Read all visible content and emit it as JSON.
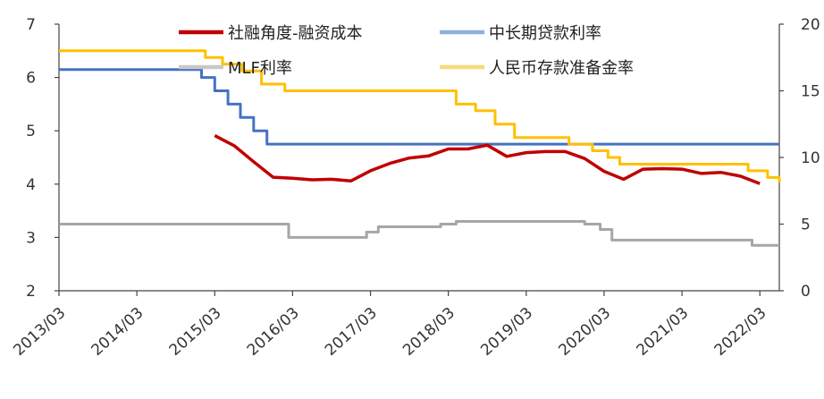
{
  "chart_data": {
    "type": "line",
    "title": "",
    "xlabel": "",
    "ylabel_left": "",
    "ylabel_right": "",
    "x_tick_labels": [
      "2013/03",
      "2014/03",
      "2015/03",
      "2016/03",
      "2017/03",
      "2018/03",
      "2019/03",
      "2020/03",
      "2021/03",
      "2022/03"
    ],
    "ylim_left": [
      2,
      7
    ],
    "yticks_left": [
      "2",
      "3",
      "4",
      "5",
      "6",
      "7"
    ],
    "ylim_right": [
      0,
      20
    ],
    "yticks_right": [
      "0",
      "5",
      "10",
      "15",
      "20"
    ],
    "grid": false,
    "legend": {
      "placement": "top-center",
      "entries": [
        {
          "name": "社融角度-融资成本",
          "color": "#c00000"
        },
        {
          "name": "中长期贷款利率",
          "color": "#8fb0dc"
        },
        {
          "name": "MLF利率",
          "color": "#c8c8c8"
        },
        {
          "name": "人民币存款准备金率",
          "color": "#f5dc78"
        }
      ]
    },
    "series": [
      {
        "name": "社融角度-融资成本",
        "axis": "left",
        "color": "#c00000",
        "x": [
          2015.0,
          2015.25,
          2015.5,
          2015.75,
          2016.0,
          2016.25,
          2016.5,
          2016.75,
          2017.0,
          2017.25,
          2017.5,
          2017.75,
          2018.0,
          2018.25,
          2018.5,
          2018.75,
          2019.0,
          2019.25,
          2019.5,
          2019.75,
          2020.0,
          2020.25,
          2020.5,
          2020.75,
          2021.0,
          2021.25,
          2021.5,
          2021.75,
          2022.0
        ],
        "y": [
          4.91,
          4.72,
          4.42,
          4.13,
          4.11,
          4.08,
          4.09,
          4.06,
          4.25,
          4.39,
          4.49,
          4.53,
          4.66,
          4.66,
          4.73,
          4.52,
          4.59,
          4.61,
          4.61,
          4.48,
          4.24,
          4.09,
          4.28,
          4.29,
          4.28,
          4.2,
          4.22,
          4.15,
          4.01
        ]
      },
      {
        "name": "中长期贷款利率",
        "axis": "left",
        "color": "#4472c4",
        "step": true,
        "x": [
          2013.0,
          2014.5,
          2014.83,
          2015.0,
          2015.17,
          2015.33,
          2015.5,
          2015.67,
          2015.82,
          2016.5,
          2017.5,
          2018.5,
          2019.5,
          2020.5,
          2021.5,
          2022.25
        ],
        "y": [
          6.15,
          6.15,
          6.0,
          5.75,
          5.5,
          5.25,
          5.0,
          4.75,
          4.75,
          4.75,
          4.75,
          4.75,
          4.75,
          4.75,
          4.75,
          4.75
        ]
      },
      {
        "name": "MLF利率",
        "axis": "left",
        "color": "#a6a6a6",
        "step": true,
        "x": [
          2013.0,
          2014.0,
          2015.0,
          2015.95,
          2016.95,
          2017.1,
          2017.9,
          2018.1,
          2019.5,
          2019.75,
          2019.95,
          2020.1,
          2020.75,
          2021.5,
          2021.9,
          2022.25
        ],
        "y": [
          3.25,
          3.25,
          3.25,
          3.0,
          3.1,
          3.2,
          3.25,
          3.3,
          3.3,
          3.25,
          3.15,
          2.95,
          2.95,
          2.95,
          2.85,
          2.85
        ]
      },
      {
        "name": "人民币存款准备金率",
        "axis": "right",
        "color": "#ffc000",
        "step": true,
        "x": [
          2013.0,
          2014.0,
          2014.88,
          2015.1,
          2015.35,
          2015.6,
          2015.9,
          2016.2,
          2017.0,
          2018.0,
          2018.1,
          2018.35,
          2018.6,
          2018.85,
          2019.55,
          2019.85,
          2020.05,
          2020.2,
          2021.3,
          2021.85,
          2022.1,
          2022.25
        ],
        "y": [
          18.0,
          18.0,
          17.5,
          17.0,
          16.5,
          15.5,
          15.0,
          15.0,
          15.0,
          15.0,
          14.0,
          13.5,
          12.5,
          11.5,
          11.0,
          10.5,
          10.0,
          9.5,
          9.5,
          9.0,
          8.5,
          8.1
        ]
      }
    ]
  }
}
